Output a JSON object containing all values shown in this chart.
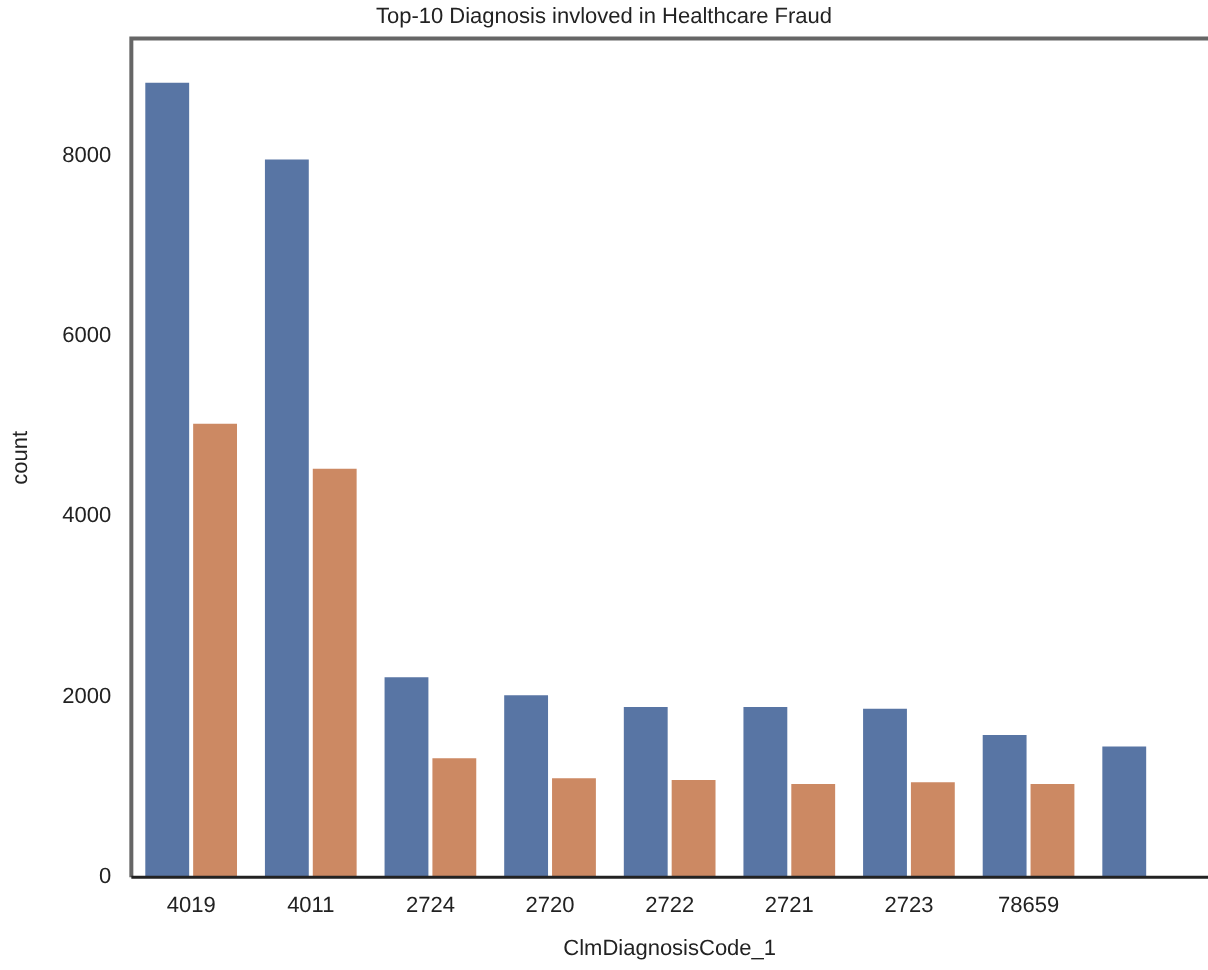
{
  "chart_data": {
    "type": "bar",
    "title": "Top-10 Diagnosis invloved in Healthcare Fraud",
    "xlabel": "ClmDiagnosisCode_1",
    "ylabel": "count",
    "categories": [
      "4019",
      "4011",
      "2724",
      "2720",
      "2722",
      "2721",
      "2723",
      "78659",
      null
    ],
    "series": [
      {
        "color": "#5875a4",
        "values": [
          8830,
          7980,
          2240,
          2040,
          1910,
          1910,
          1890,
          1600,
          1470
        ]
      },
      {
        "color": "#cc8963",
        "values": [
          5050,
          4550,
          1340,
          1120,
          1100,
          1055,
          1075,
          1055,
          null
        ]
      }
    ],
    "ylim": [
      0,
      9300
    ],
    "yticks": [
      0,
      2000,
      4000,
      6000,
      8000
    ],
    "grid": false,
    "legend": false
  }
}
